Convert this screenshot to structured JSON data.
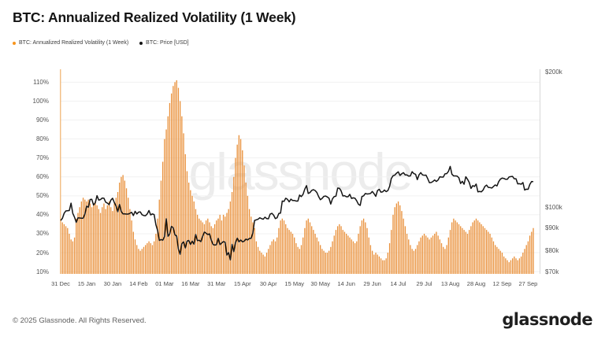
{
  "header": {
    "title": "BTC: Annualized Realized Volatility (1 Week)"
  },
  "legend": [
    {
      "label": "BTC: Annualized Realized Volatility (1 Week)",
      "color": "#F7941C"
    },
    {
      "label": "BTC: Price [USD]",
      "color": "#141414"
    }
  ],
  "watermark": "glassnode",
  "footer": {
    "copyright": "© 2025 Glassnode. All Rights Reserved.",
    "logo": "glassnode"
  },
  "colors": {
    "bar": "#E98F38",
    "price_line": "#141414",
    "left_axis_line": "#F2BE85",
    "right_axis_line": "#D8D8D8",
    "gridline": "#F1F1F1"
  },
  "chart_data": {
    "type": "bar+line",
    "title": "BTC: Annualized Realized Volatility (1 Week)",
    "x_start": "31 Dec",
    "x_end": "30 Sep",
    "frequency": "daily",
    "grid": "horizontal",
    "legend_position": "top-left",
    "x_axis": {
      "tick_indices": [
        0,
        15,
        30,
        45,
        60,
        75,
        90,
        105,
        120,
        135,
        150,
        165,
        180,
        195,
        210,
        225,
        240,
        255,
        270
      ],
      "tick_labels": [
        "31 Dec",
        "15 Jan",
        "30 Jan",
        "14 Feb",
        "01 Mar",
        "16 Mar",
        "31 Mar",
        "15 Apr",
        "30 Apr",
        "15 May",
        "30 May",
        "14 Jun",
        "29 Jun",
        "14 Jul",
        "29 Jul",
        "13 Aug",
        "28 Aug",
        "12 Sep",
        "27 Sep"
      ]
    },
    "left_axis": {
      "unit": "%",
      "min": 8.8,
      "max": 116.8,
      "tick_values": [
        10,
        20,
        30,
        40,
        50,
        60,
        70,
        80,
        90,
        100,
        110
      ],
      "tick_labels": [
        "10%",
        "20%",
        "30%",
        "40%",
        "50%",
        "60%",
        "70%",
        "80%",
        "90%",
        "100%",
        "110%"
      ]
    },
    "right_axis": {
      "unit": "USD",
      "scale": "log",
      "min": 71,
      "max": 203,
      "tick_values": [
        70,
        80,
        90,
        100,
        200
      ],
      "tick_labels": [
        "$70k",
        "$80k",
        "$90k",
        "$100k",
        "$200k"
      ]
    },
    "series": [
      {
        "name": "BTC: Annualized Realized Volatility (1 Week)",
        "type": "bar",
        "axis": "left",
        "unit": "%",
        "values": [
          37,
          36,
          35,
          34,
          33,
          30,
          27,
          26,
          28,
          38,
          41,
          44,
          47,
          49,
          48,
          47,
          48,
          46,
          44,
          46,
          47,
          45,
          43,
          41,
          44,
          46,
          43,
          45,
          47,
          44,
          42,
          46,
          49,
          52,
          57,
          60,
          61,
          58,
          54,
          49,
          43,
          37,
          31,
          27,
          24,
          22,
          21,
          22,
          23,
          24,
          25,
          26,
          25,
          24,
          26,
          30,
          38,
          48,
          58,
          68,
          80,
          85,
          92,
          99,
          104,
          108,
          110,
          111,
          107,
          100,
          92,
          83,
          72,
          63,
          57,
          53,
          50,
          47,
          43,
          40,
          38,
          37,
          36,
          35,
          37,
          38,
          36,
          34,
          33,
          35,
          37,
          38,
          40,
          37,
          40,
          39,
          41,
          43,
          47,
          52,
          60,
          70,
          77,
          82,
          80,
          74,
          66,
          57,
          50,
          43,
          39,
          36,
          33,
          26,
          23,
          21,
          20,
          19,
          18,
          20,
          22,
          24,
          26,
          27,
          26,
          28,
          33,
          37,
          38,
          37,
          35,
          33,
          32,
          31,
          30,
          28,
          25,
          23,
          22,
          24,
          28,
          33,
          37,
          38,
          36,
          34,
          32,
          30,
          28,
          26,
          24,
          22,
          21,
          20,
          20,
          21,
          23,
          26,
          29,
          32,
          34,
          35,
          34,
          32,
          31,
          30,
          29,
          28,
          27,
          26,
          25,
          26,
          30,
          34,
          37,
          38,
          36,
          33,
          28,
          24,
          21,
          19,
          20,
          19,
          18,
          17,
          16,
          16,
          17,
          20,
          25,
          32,
          40,
          44,
          46,
          47,
          45,
          42,
          38,
          34,
          30,
          27,
          24,
          22,
          21,
          22,
          24,
          26,
          28,
          29,
          30,
          29,
          28,
          27,
          28,
          29,
          30,
          31,
          29,
          27,
          25,
          23,
          22,
          24,
          28,
          32,
          36,
          38,
          37,
          36,
          35,
          34,
          33,
          32,
          31,
          30,
          32,
          34,
          36,
          37,
          38,
          37,
          36,
          35,
          34,
          33,
          32,
          31,
          30,
          28,
          26,
          24,
          23,
          22,
          21,
          20,
          18,
          17,
          16,
          15,
          16,
          17,
          18,
          17,
          16,
          17,
          18,
          20,
          22,
          24,
          26,
          29,
          31,
          33
        ]
      },
      {
        "name": "BTC: Price [USD]",
        "type": "line",
        "axis": "right",
        "unit": "USD (thousands)",
        "values": [
          93.4,
          94.4,
          96.9,
          98.1,
          98.2,
          98.3,
          102.1,
          96.9,
          95.0,
          92.5,
          94.7,
          94.6,
          94.5,
          94.5,
          96.5,
          100.5,
          100.0,
          104.0,
          104.1,
          101.1,
          102.3,
          106.1,
          103.7,
          104.0,
          104.8,
          104.7,
          102.6,
          102.1,
          101.3,
          103.7,
          104.7,
          102.4,
          100.6,
          97.7,
          101.4,
          97.8,
          96.6,
          96.6,
          96.5,
          96.5,
          96.9,
          97.4,
          95.8,
          97.9,
          96.6,
          97.5,
          97.6,
          96.2,
          95.8,
          95.7,
          96.6,
          98.3,
          96.1,
          96.6,
          96.3,
          91.4,
          88.7,
          84.3,
          84.7,
          84.4,
          86.0,
          94.2,
          86.1,
          87.2,
          90.6,
          90.0,
          86.8,
          86.2,
          80.7,
          78.5,
          82.9,
          83.7,
          81.1,
          84.0,
          84.3,
          82.6,
          84.0,
          82.7,
          86.9,
          84.2,
          84.4,
          83.8,
          86.1,
          88.0,
          87.5,
          86.9,
          87.2,
          84.4,
          82.6,
          82.3,
          82.5,
          85.2,
          82.5,
          83.2,
          83.8,
          83.5,
          78.2,
          79.2,
          76.3,
          82.6,
          79.6,
          83.4,
          85.3,
          83.7,
          84.5,
          83.7,
          84.0,
          84.9,
          84.5,
          85.2,
          85.2,
          87.5,
          93.4,
          93.7,
          94.0,
          94.7,
          94.3,
          94.0,
          95.0,
          94.3,
          94.2,
          96.5,
          96.9,
          96.0,
          94.3,
          94.7,
          96.8,
          97.0,
          103.2,
          103.0,
          104.7,
          104.1,
          102.8,
          104.2,
          103.5,
          103.5,
          103.2,
          103.2,
          106.4,
          105.6,
          106.8,
          109.7,
          111.7,
          107.3,
          107.8,
          109.0,
          109.4,
          108.9,
          107.8,
          105.6,
          103.9,
          104.6,
          105.7,
          105.9,
          105.4,
          104.7,
          101.6,
          104.4,
          105.6,
          105.8,
          110.3,
          110.2,
          108.7,
          105.9,
          106.1,
          105.5,
          105.5,
          106.8,
          104.6,
          104.9,
          104.7,
          103.3,
          101.5,
          100.9,
          105.6,
          106.0,
          107.3,
          107.0,
          107.1,
          107.3,
          108.4,
          107.2,
          105.7,
          108.9,
          109.6,
          108.0,
          108.2,
          109.2,
          108.3,
          108.9,
          111.3,
          115.9,
          117.5,
          117.9,
          119.1,
          119.9,
          117.7,
          118.7,
          119.4,
          118.0,
          118.0,
          117.3,
          117.4,
          120.0,
          118.8,
          118.4,
          115.2,
          118.1,
          119.4,
          118.0,
          117.8,
          117.9,
          115.8,
          113.4,
          113.5,
          114.1,
          115.0,
          114.1,
          115.0,
          116.9,
          116.7,
          116.7,
          118.7,
          118.8,
          120.2,
          123.3,
          118.4,
          117.4,
          117.4,
          117.3,
          116.3,
          112.9,
          114.2,
          112.5,
          116.9,
          115.4,
          113.5,
          110.1,
          111.7,
          111.2,
          112.6,
          108.2,
          108.4,
          108.2,
          109.2,
          111.2,
          112.0,
          110.7,
          110.6,
          110.3,
          111.2,
          112.1,
          111.5,
          114.0,
          115.5,
          116.1,
          115.9,
          115.4,
          115.4,
          116.8,
          117.0,
          117.1,
          115.7,
          115.7,
          112.7,
          112.8,
          112.5,
          113.5,
          109.2,
          109.7,
          109.6,
          112.4,
          114.1,
          114.0
        ]
      }
    ]
  }
}
